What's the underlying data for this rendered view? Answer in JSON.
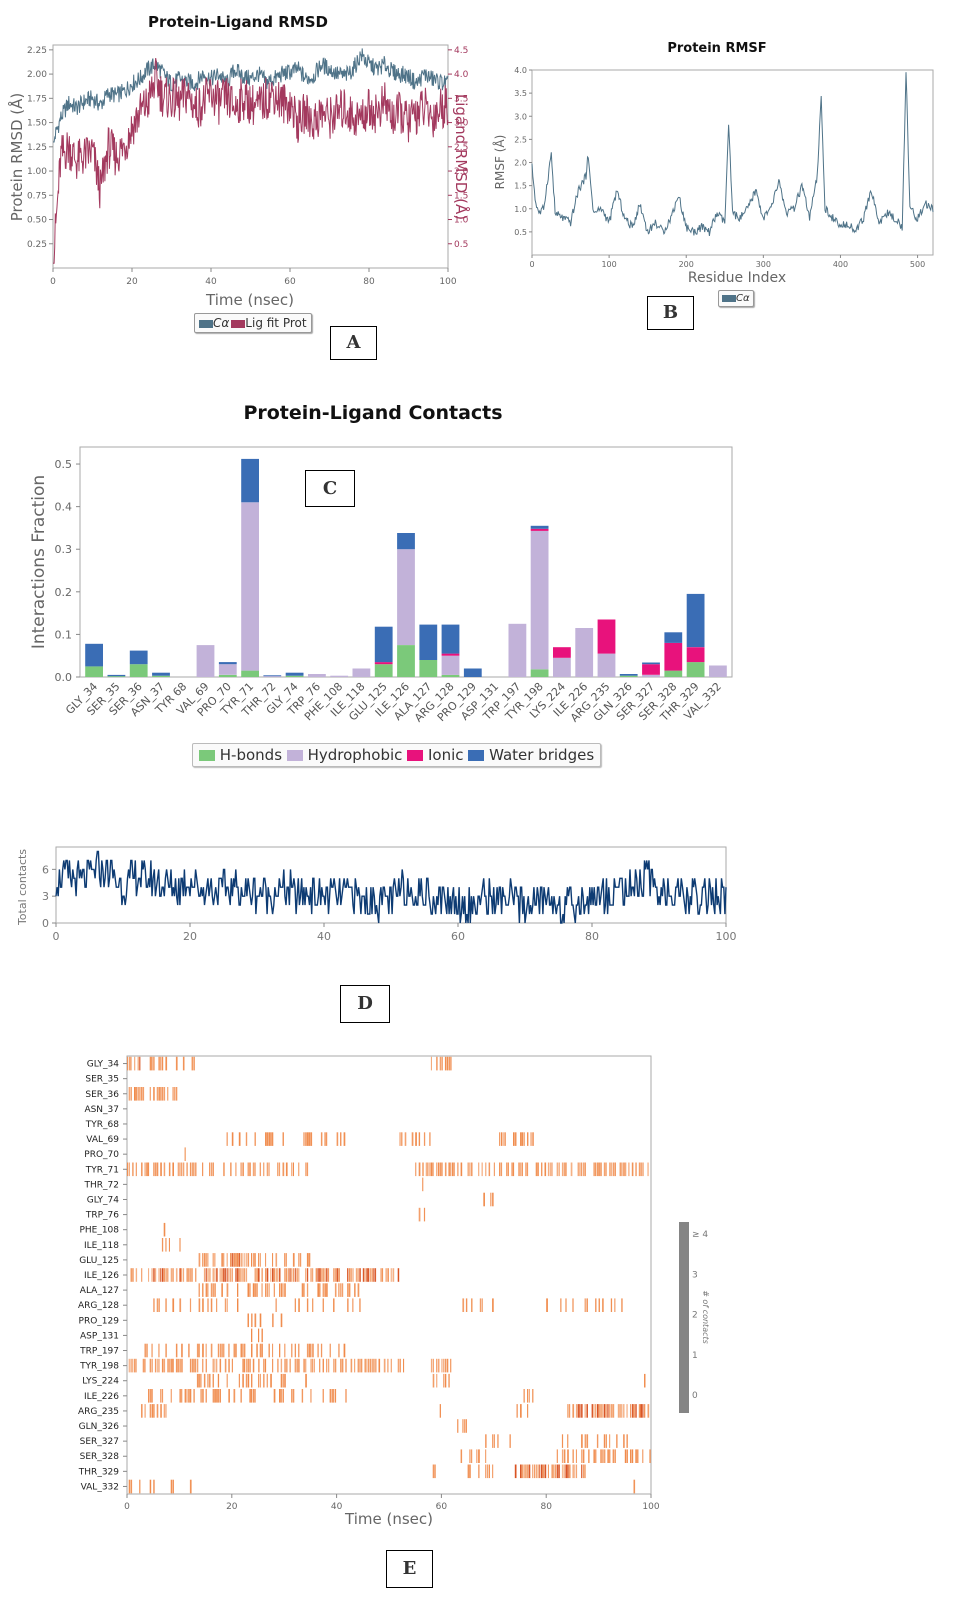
{
  "panel_labels": {
    "a": "A",
    "b": "B",
    "c": "C",
    "d": "D",
    "e": "E"
  },
  "colors": {
    "ca": "#4f7388",
    "lig": "#a3395e",
    "rmsf": "#4f7388",
    "hbond": "#7bc97a",
    "hydrophobic": "#c2b2d9",
    "ionic": "#e8127c",
    "water": "#3a6db5",
    "contacts": "#0d3b73",
    "heat": "#f08a4a",
    "heat_dark": "#d8501e",
    "colorbar": "#858585"
  },
  "chart_data": [
    {
      "id": "rmsd",
      "type": "line",
      "title": "Protein-Ligand RMSD",
      "xlabel": "Time (nsec)",
      "ylabel": "Protein RMSD (Å)",
      "y2label": "Ligand RMSD (Å)",
      "xlim": [
        0,
        100
      ],
      "ylim": [
        0,
        2.3
      ],
      "y2lim": [
        0,
        4.6
      ],
      "xticks": [
        "0",
        "20",
        "40",
        "60",
        "80",
        "100"
      ],
      "yticks": [
        "0.25",
        "0.50",
        "0.75",
        "1.00",
        "1.25",
        "1.50",
        "1.75",
        "2.00",
        "2.25"
      ],
      "y2ticks": [
        "0.5",
        "1.0",
        "1.5",
        "2.0",
        "2.5",
        "3.0",
        "3.5",
        "4.0",
        "4.5"
      ],
      "legend": [
        "Cα",
        "Lig fit Prot"
      ],
      "series": [
        {
          "name": "Cα",
          "axis": "left",
          "x": [
            0,
            2,
            4,
            6,
            8,
            10,
            12,
            14,
            16,
            18,
            20,
            22,
            24,
            26,
            28,
            30,
            32,
            34,
            36,
            38,
            40,
            42,
            44,
            46,
            48,
            50,
            52,
            54,
            56,
            58,
            60,
            62,
            64,
            66,
            68,
            70,
            72,
            74,
            76,
            78,
            80,
            82,
            84,
            86,
            88,
            90,
            92,
            94,
            96,
            98,
            100
          ],
          "y": [
            1.3,
            1.55,
            1.7,
            1.65,
            1.72,
            1.75,
            1.68,
            1.8,
            1.78,
            1.82,
            1.9,
            1.95,
            2.05,
            2.1,
            2.0,
            1.9,
            1.95,
            1.92,
            1.9,
            2.0,
            1.95,
            2.0,
            1.9,
            2.05,
            1.98,
            1.95,
            2.0,
            1.92,
            1.95,
            2.0,
            2.02,
            2.05,
            1.95,
            1.98,
            2.1,
            2.05,
            2.0,
            1.98,
            2.05,
            2.2,
            2.1,
            2.05,
            2.1,
            2.02,
            2.0,
            1.98,
            1.9,
            2.0,
            1.95,
            1.92,
            1.9
          ]
        },
        {
          "name": "Lig fit Prot",
          "axis": "right",
          "x": [
            0,
            2,
            4,
            6,
            8,
            10,
            12,
            14,
            16,
            18,
            20,
            22,
            24,
            26,
            28,
            30,
            32,
            34,
            36,
            38,
            40,
            42,
            44,
            46,
            48,
            50,
            52,
            54,
            56,
            58,
            60,
            62,
            64,
            66,
            68,
            70,
            72,
            74,
            76,
            78,
            80,
            82,
            84,
            86,
            88,
            90,
            92,
            94,
            96,
            98,
            100
          ],
          "y": [
            0.1,
            2.3,
            2.5,
            2.2,
            2.3,
            2.4,
            1.6,
            2.5,
            2.3,
            2.5,
            2.9,
            3.2,
            3.4,
            3.9,
            3.5,
            3.5,
            3.4,
            3.6,
            3.3,
            3.4,
            3.6,
            3.4,
            3.5,
            3.3,
            3.5,
            3.4,
            3.3,
            3.5,
            3.6,
            3.4,
            3.4,
            3.0,
            3.2,
            3.0,
            3.2,
            3.1,
            3.2,
            3.3,
            3.1,
            3.1,
            3.3,
            3.2,
            3.4,
            3.1,
            3.2,
            3.0,
            3.2,
            3.3,
            3.1,
            3.3,
            3.4
          ]
        }
      ]
    },
    {
      "id": "rmsf",
      "type": "line",
      "title": "Protein RMSF",
      "xlabel": "Residue Index",
      "ylabel": "RMSF (Å)",
      "xlim": [
        0,
        520
      ],
      "ylim": [
        0,
        4.0
      ],
      "xticks": [
        "0",
        "100",
        "200",
        "300",
        "400",
        "500"
      ],
      "yticks": [
        "0.5",
        "1.0",
        "1.5",
        "2.0",
        "2.5",
        "3.0",
        "3.5",
        "4.0"
      ],
      "legend": [
        "Cα"
      ],
      "series": [
        {
          "name": "Cα",
          "x": [
            0,
            5,
            10,
            15,
            20,
            25,
            30,
            40,
            50,
            60,
            70,
            72,
            80,
            90,
            100,
            110,
            120,
            130,
            140,
            150,
            160,
            170,
            180,
            190,
            200,
            210,
            220,
            230,
            240,
            250,
            255,
            260,
            270,
            280,
            290,
            300,
            310,
            320,
            330,
            340,
            350,
            360,
            370,
            375,
            380,
            390,
            400,
            410,
            420,
            430,
            440,
            450,
            460,
            470,
            480,
            485,
            490,
            500,
            510,
            520
          ],
          "y": [
            1.9,
            1.1,
            0.9,
            1.0,
            1.6,
            2.2,
            0.9,
            0.8,
            0.7,
            1.4,
            1.7,
            2.2,
            0.9,
            1.0,
            0.7,
            1.4,
            0.8,
            0.6,
            1.1,
            0.5,
            0.7,
            0.5,
            0.8,
            1.3,
            0.6,
            0.5,
            0.6,
            0.5,
            0.9,
            0.7,
            2.8,
            0.9,
            0.8,
            1.0,
            1.4,
            0.8,
            1.0,
            1.6,
            0.9,
            1.0,
            1.5,
            0.8,
            1.7,
            3.4,
            1.0,
            0.8,
            0.6,
            0.7,
            0.5,
            0.8,
            1.4,
            0.7,
            0.9,
            0.8,
            0.6,
            4.0,
            1.0,
            0.8,
            1.1,
            1.0
          ]
        }
      ]
    },
    {
      "id": "contacts",
      "type": "bar",
      "title": "Protein-Ligand Contacts",
      "ylabel": "Interactions Fraction",
      "ylim": [
        0,
        0.54
      ],
      "yticks": [
        "0.0",
        "0.1",
        "0.2",
        "0.3",
        "0.4",
        "0.5"
      ],
      "legend": [
        "H-bonds",
        "Hydrophobic",
        "Ionic",
        "Water bridges"
      ],
      "categories": [
        "GLY_34",
        "SER_35",
        "SER_36",
        "ASN_37",
        "TYR 68",
        "VAL_69",
        "PRO_70",
        "TYR_71",
        "THR_72",
        "GLY_74",
        "TRP_76",
        "PHE_108",
        "ILE_118",
        "GLU_125",
        "ILE_126",
        "ALA_127",
        "ARG_128",
        "PRO_129",
        "ASP_131",
        "TRP_197",
        "TYR_198",
        "LYS_224",
        "ILE_226",
        "ARG_235",
        "GLN_326",
        "SER_327",
        "SER_328",
        "THR_329",
        "VAL_332"
      ],
      "series": [
        {
          "name": "H-bonds",
          "values": [
            0.025,
            0.002,
            0.03,
            0.003,
            0,
            0,
            0.005,
            0.015,
            0,
            0.003,
            0,
            0,
            0,
            0.03,
            0.075,
            0.04,
            0.005,
            0,
            0,
            0,
            0.018,
            0,
            0,
            0,
            0.003,
            0,
            0.015,
            0.035,
            0
          ]
        },
        {
          "name": "Hydrophobic",
          "values": [
            0,
            0,
            0,
            0,
            0,
            0.075,
            0.025,
            0.395,
            0.002,
            0,
            0.007,
            0.003,
            0.02,
            0,
            0.225,
            0,
            0.045,
            0,
            0,
            0.125,
            0.325,
            0.045,
            0.115,
            0.055,
            0,
            0.005,
            0,
            0,
            0.027
          ]
        },
        {
          "name": "Ionic",
          "values": [
            0,
            0,
            0,
            0,
            0,
            0,
            0,
            0,
            0,
            0,
            0,
            0,
            0,
            0.005,
            0,
            0,
            0.005,
            0,
            0,
            0,
            0.005,
            0.025,
            0,
            0.08,
            0,
            0.025,
            0.065,
            0.035,
            0
          ]
        },
        {
          "name": "Water bridges",
          "values": [
            0.053,
            0.003,
            0.032,
            0.007,
            0,
            0,
            0.005,
            0.102,
            0.002,
            0.007,
            0,
            0,
            0,
            0.083,
            0.038,
            0.083,
            0.068,
            0.02,
            0,
            0,
            0.007,
            0,
            0,
            0,
            0.004,
            0.004,
            0.025,
            0.125,
            0
          ]
        }
      ]
    },
    {
      "id": "total_contacts",
      "type": "line",
      "ylabel": "Total contacts",
      "xlim": [
        0,
        100
      ],
      "ylim": [
        0,
        8.5
      ],
      "xticks": [
        "0",
        "20",
        "40",
        "60",
        "80",
        "100"
      ],
      "yticks": [
        "0",
        "3",
        "6"
      ],
      "series": [
        {
          "name": "",
          "x": [
            0,
            2,
            4,
            6,
            8,
            10,
            12,
            14,
            16,
            18,
            20,
            22,
            24,
            26,
            28,
            30,
            32,
            34,
            36,
            38,
            40,
            42,
            44,
            46,
            48,
            50,
            52,
            54,
            56,
            58,
            60,
            62,
            64,
            66,
            68,
            70,
            72,
            74,
            76,
            78,
            80,
            82,
            84,
            86,
            88,
            90,
            92,
            94,
            96,
            98,
            100
          ],
          "y": [
            5,
            5,
            4.5,
            6,
            5.5,
            4,
            5,
            5,
            4.5,
            4,
            4.5,
            4,
            3.5,
            4,
            3.5,
            3.5,
            3,
            4,
            3,
            3.5,
            3,
            3,
            3.5,
            2.5,
            2.5,
            2.5,
            4,
            3.5,
            3,
            2.5,
            2.5,
            1.5,
            3,
            2.5,
            2.5,
            2,
            2.5,
            2.5,
            1.5,
            2,
            3,
            3,
            4,
            4,
            5,
            4,
            3,
            2.5,
            3,
            3,
            2.5
          ]
        }
      ]
    },
    {
      "id": "timeline",
      "type": "heatmap",
      "xlabel": "Time (nsec)",
      "xlim": [
        0,
        100
      ],
      "xticks": [
        "0",
        "20",
        "40",
        "60",
        "80",
        "100"
      ],
      "colorbar_label": "# of contacts",
      "colorbar_ticks": [
        "0",
        "1",
        "2",
        "3",
        "≥ 4"
      ],
      "rows": [
        "GLY_34",
        "SER_35",
        "SER_36",
        "ASN_37",
        "TYR_68",
        "VAL_69",
        "PRO_70",
        "TYR_71",
        "THR_72",
        "GLY_74",
        "TRP_76",
        "PHE_108",
        "ILE_118",
        "GLU_125",
        "ILE_126",
        "ALA_127",
        "ARG_128",
        "PRO_129",
        "ASP_131",
        "TRP_197",
        "TYR_198",
        "LYS_224",
        "ILE_226",
        "ARG_235",
        "GLN_326",
        "SER_327",
        "SER_328",
        "THR_329",
        "VAL_332"
      ],
      "segments": [
        [
          [
            0,
            3,
            0.8
          ],
          [
            4,
            13,
            0.35
          ],
          [
            58,
            62,
            0.5
          ]
        ],
        [
          [
            0,
            3,
            0.15
          ]
        ],
        [
          [
            0,
            10,
            0.5
          ]
        ],
        [
          [
            2,
            4,
            0.3
          ]
        ],
        [
          [
            52,
            54,
            0.1
          ]
        ],
        [
          [
            19,
            30,
            0.3
          ],
          [
            32,
            42,
            0.25
          ],
          [
            52,
            58,
            0.4
          ],
          [
            71,
            78,
            0.3
          ]
        ],
        [
          [
            10,
            12,
            0.15
          ],
          [
            55,
            60,
            0.2
          ]
        ],
        [
          [
            0,
            35,
            0.45
          ],
          [
            55,
            100,
            0.6
          ]
        ],
        [
          [
            55,
            58,
            0.15
          ]
        ],
        [
          [
            68,
            72,
            0.3
          ]
        ],
        [
          [
            55,
            58,
            0.4
          ]
        ],
        [
          [
            7,
            9,
            0.1
          ]
        ],
        [
          [
            4,
            12,
            0.35
          ]
        ],
        [
          [
            13,
            35,
            0.45
          ],
          [
            19,
            23,
            0.9
          ]
        ],
        [
          [
            0,
            52,
            0.65
          ]
        ],
        [
          [
            13,
            45,
            0.4
          ]
        ],
        [
          [
            4,
            22,
            0.35
          ],
          [
            28,
            45,
            0.3
          ],
          [
            64,
            72,
            0.35
          ],
          [
            80,
            95,
            0.25
          ]
        ],
        [
          [
            23,
            30,
            0.35
          ]
        ],
        [
          [
            23,
            26,
            0.1
          ]
        ],
        [
          [
            3,
            42,
            0.35
          ]
        ],
        [
          [
            0,
            53,
            0.55
          ],
          [
            58,
            62,
            0.6
          ]
        ],
        [
          [
            13,
            35,
            0.3
          ],
          [
            58,
            62,
            0.5
          ],
          [
            97,
            99,
            0.2
          ]
        ],
        [
          [
            4,
            42,
            0.3
          ],
          [
            75,
            78,
            0.2
          ]
        ],
        [
          [
            2,
            8,
            0.4
          ],
          [
            58,
            60,
            0.3
          ],
          [
            74,
            78,
            0.3
          ],
          [
            84,
            100,
            0.65
          ]
        ],
        [
          [
            63,
            66,
            0.3
          ]
        ],
        [
          [
            68,
            74,
            0.25
          ],
          [
            82,
            96,
            0.35
          ]
        ],
        [
          [
            63,
            70,
            0.3
          ],
          [
            82,
            100,
            0.45
          ]
        ],
        [
          [
            58,
            60,
            0.3
          ],
          [
            65,
            70,
            0.4
          ],
          [
            74,
            88,
            0.8
          ]
        ],
        [
          [
            0,
            13,
            0.3
          ],
          [
            88,
            90,
            0.2
          ],
          [
            96,
            98,
            0.2
          ]
        ]
      ]
    }
  ]
}
